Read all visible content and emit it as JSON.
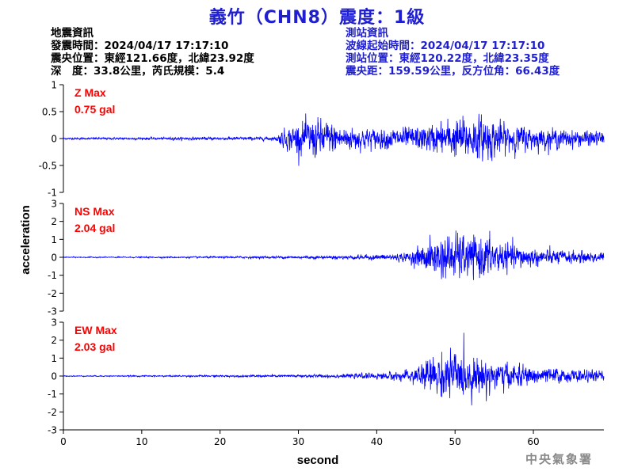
{
  "header": {
    "title": "義竹（CHN8）震度：1級"
  },
  "earthquake_info": {
    "heading": "地震資訊",
    "time": "發震時間：2024/04/17 17:17:10",
    "location": "震央位置：東經121.66度，北緯23.92度",
    "depth_magnitude": "深　度：33.8公里，芮氏規模：5.4"
  },
  "station_info": {
    "heading": "測站資訊",
    "onset_time": "波線起始時間：2024/04/17 17:17:10",
    "location": "測站位置：東經120.22度，北緯23.35度",
    "distance_azimuth": "震央距：159.59公里，反方位角：66.43度"
  },
  "footer": {
    "agency": "中央氣象署"
  },
  "colors": {
    "trace": "#0000ff",
    "max_label": "#ff0000",
    "title": "#1f1fd0",
    "station_info": "#1f1fd0",
    "footer": "#8a8a8a"
  },
  "chart_data": {
    "type": "line",
    "xlabel": "second",
    "ylabel": "acceleration",
    "xlim": [
      0,
      69
    ],
    "xticks": [
      0,
      10,
      20,
      30,
      40,
      50,
      60
    ],
    "grid": false,
    "panels": [
      {
        "name": "Z",
        "label": "Z Max",
        "max_text": "0.75 gal",
        "ylim": [
          -1,
          1
        ],
        "yticks": [
          -1,
          -0.5,
          0,
          0.5,
          1
        ],
        "ytick_labels": [
          "-1",
          "-0.5",
          "0",
          "0.5",
          "1"
        ],
        "envelope": {
          "x": [
            0,
            27,
            28,
            30,
            32,
            34,
            36,
            40,
            44,
            47,
            50,
            52,
            54,
            56,
            60,
            64,
            69
          ],
          "y": [
            0.02,
            0.04,
            0.2,
            0.35,
            0.45,
            0.38,
            0.28,
            0.22,
            0.25,
            0.3,
            0.45,
            0.5,
            0.48,
            0.35,
            0.25,
            0.2,
            0.15
          ]
        }
      },
      {
        "name": "NS",
        "label": "NS Max",
        "max_text": "2.04 gal",
        "ylim": [
          -3,
          3
        ],
        "yticks": [
          -3,
          -2,
          -1,
          0,
          1,
          2,
          3
        ],
        "ytick_labels": [
          "-3",
          "-2",
          "-1",
          "0",
          "1",
          "2",
          "3"
        ],
        "envelope": {
          "x": [
            0,
            15,
            27,
            35,
            40,
            44,
            46,
            48,
            50,
            52,
            54,
            56,
            58,
            60,
            64,
            69
          ],
          "y": [
            0.03,
            0.05,
            0.08,
            0.12,
            0.18,
            0.3,
            0.9,
            1.4,
            1.6,
            1.3,
            1.5,
            1.0,
            0.8,
            0.6,
            0.45,
            0.35
          ]
        }
      },
      {
        "name": "EW",
        "label": "EW Max",
        "max_text": "2.03 gal",
        "ylim": [
          -3,
          3
        ],
        "yticks": [
          -3,
          -2,
          -1,
          0,
          1,
          2,
          3
        ],
        "ytick_labels": [
          "-3",
          "-2",
          "-1",
          "0",
          "1",
          "2",
          "3"
        ],
        "envelope": {
          "x": [
            0,
            15,
            27,
            35,
            40,
            44,
            46,
            48,
            50,
            52,
            54,
            56,
            58,
            60,
            64,
            69
          ],
          "y": [
            0.03,
            0.05,
            0.08,
            0.12,
            0.2,
            0.35,
            1.0,
            1.5,
            1.6,
            1.3,
            1.2,
            0.9,
            0.75,
            0.6,
            0.45,
            0.35
          ]
        }
      }
    ]
  }
}
